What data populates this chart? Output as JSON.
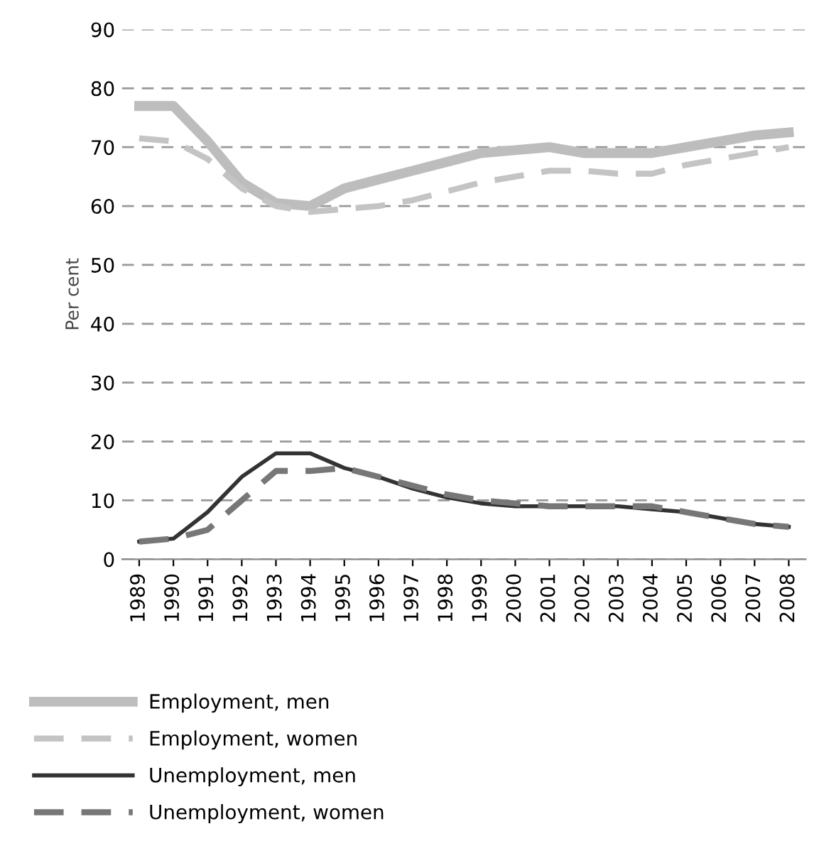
{
  "chart_data": {
    "type": "line",
    "ylabel": "Per cent",
    "categories": [
      "1989",
      "1990",
      "1991",
      "1992",
      "1993",
      "1994",
      "1995",
      "1996",
      "1997",
      "1998",
      "1999",
      "2000",
      "2001",
      "2002",
      "2003",
      "2004",
      "2005",
      "2006",
      "2007",
      "2008"
    ],
    "series": [
      {
        "name": "Employment, men",
        "color": "#bdbdbd",
        "line_style": "solid",
        "values": [
          77,
          77,
          71,
          64,
          60.5,
          60,
          63,
          64.5,
          66,
          67.5,
          69,
          69.5,
          70,
          69,
          69,
          69,
          70,
          71,
          72,
          72.5
        ]
      },
      {
        "name": "Employment, women",
        "color": "#c4c4c4",
        "line_style": "dashed",
        "values": [
          71.5,
          71,
          68,
          63,
          60,
          59,
          59.5,
          60,
          61,
          62.5,
          64,
          65,
          66,
          66,
          65.5,
          65.5,
          67,
          68,
          69,
          70
        ]
      },
      {
        "name": "Unemployment, men",
        "color": "#333333",
        "line_style": "solid",
        "values": [
          3,
          3.5,
          8,
          14,
          18,
          18,
          15.5,
          14,
          12,
          10.5,
          9.5,
          9,
          9,
          9,
          9,
          8.5,
          8,
          7,
          6,
          5.5
        ]
      },
      {
        "name": "Unemployment, women",
        "color": "#777777",
        "line_style": "dashed",
        "values": [
          3,
          3.5,
          5,
          10,
          15,
          15,
          15.5,
          14,
          12.5,
          11,
          10,
          9.5,
          9,
          9,
          9,
          9,
          8,
          7,
          6,
          5.5
        ]
      }
    ],
    "ylim": [
      0,
      90
    ],
    "yticks": [
      0,
      10,
      20,
      30,
      40,
      50,
      60,
      70,
      80,
      90
    ],
    "grid": "y",
    "legend": "bottom",
    "marker": "none"
  }
}
